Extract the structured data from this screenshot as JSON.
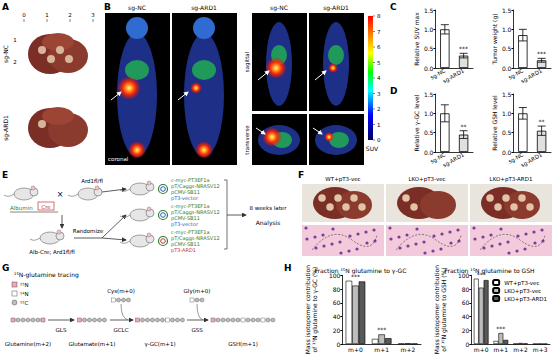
{
  "figure": {
    "panels": [
      "A",
      "B",
      "C",
      "D",
      "E",
      "F",
      "G",
      "H"
    ],
    "A": {
      "groups": [
        "sg-NC",
        "sg-ARD1"
      ],
      "ruler_x": [
        0,
        1,
        2,
        3
      ],
      "ruler_y": [
        1,
        2
      ]
    },
    "B": {
      "groups": [
        "sg-NC",
        "sg-ARD1"
      ],
      "views": [
        "coronal",
        "sagittal",
        "transverse"
      ],
      "colorbar": {
        "label": "SUV",
        "range": [
          0,
          8
        ],
        "ticks": [
          0,
          1,
          2,
          3,
          4,
          5,
          6,
          7,
          8
        ]
      }
    },
    "E": {
      "cross": "×",
      "transgene": [
        "Albumin",
        "Cre"
      ],
      "strains": [
        "Ard1fl/fl",
        "Alb-Cre; Ard1fl/fl"
      ],
      "step": "Randomize",
      "plasmids": [
        "c-myc-PT3EF1a",
        "pT/Caggs-NRASV12",
        "pCMV-SB11"
      ],
      "vectors": [
        "pT3-vector",
        "pT3-vector",
        "pT3-ARD1"
      ],
      "time": "8 weeks later",
      "end": "Analysis"
    },
    "F": {
      "groups": [
        "WT+pT3-vec",
        "LKO+pT3-vec",
        "LKO+pT3-ARD1"
      ]
    },
    "G": {
      "title": "¹⁵N-glutamine tracing",
      "symbols": [
        "¹⁵N",
        "¹⁴N",
        "¹²C"
      ],
      "metabolites": [
        "Glutamine(m+2)",
        "Glutamate(m+1)",
        "γ-GC(m+1)",
        "GSH(m+1)"
      ],
      "enzymes": [
        "GLS",
        "GCLC",
        "GSS"
      ],
      "inputs": [
        "Cys(m+0)",
        "Gly(m+0)"
      ]
    }
  },
  "chart_data": [
    {
      "type": "bar",
      "ylabel": "Relative SUV max",
      "categories": [
        "sg-NC",
        "sg-ARD1"
      ],
      "values": [
        1.0,
        0.32
      ],
      "errors": [
        0.12,
        0.06
      ],
      "colors": [
        "#ffffff",
        "#e0e0e0"
      ],
      "ylim": [
        0,
        1.5
      ],
      "yticks": [
        {
          "value": 0,
          "label": "0.0"
        },
        {
          "value": 0.5,
          "label": "0.5"
        },
        {
          "value": 1,
          "label": "1.0"
        },
        {
          "value": 1.5,
          "label": "1.5"
        }
      ],
      "annotations": [
        {
          "category": "sg-ARD1",
          "text": "***"
        }
      ]
    },
    {
      "type": "bar",
      "ylabel": "Tumor weight (g)",
      "categories": [
        "sg-NC",
        "sg-ARD1"
      ],
      "values": [
        0.85,
        0.2
      ],
      "errors": [
        0.15,
        0.05
      ],
      "colors": [
        "#ffffff",
        "#e0e0e0"
      ],
      "ylim": [
        0,
        1.5
      ],
      "yticks": [
        {
          "value": 0,
          "label": "0.0"
        },
        {
          "value": 0.5,
          "label": "0.5"
        },
        {
          "value": 1,
          "label": "1.0"
        },
        {
          "value": 1.5,
          "label": "1.5"
        }
      ],
      "annotations": [
        {
          "category": "sg-ARD1",
          "text": "***"
        }
      ]
    },
    {
      "type": "bar",
      "ylabel": "Relative γ-GC level",
      "categories": [
        "sg-NC",
        "sg-ARD1"
      ],
      "values": [
        1.0,
        0.45
      ],
      "errors": [
        0.22,
        0.1
      ],
      "colors": [
        "#ffffff",
        "#e0e0e0"
      ],
      "ylim": [
        0,
        1.5
      ],
      "yticks": [
        {
          "value": 0,
          "label": "0.0"
        },
        {
          "value": 0.5,
          "label": "0.5"
        },
        {
          "value": 1,
          "label": "1.0"
        },
        {
          "value": 1.5,
          "label": "1.5"
        }
      ],
      "annotations": [
        {
          "category": "sg-ARD1",
          "text": "**"
        }
      ]
    },
    {
      "type": "bar",
      "ylabel": "Relative GSH level",
      "categories": [
        "sg-NC",
        "sg-ARD1"
      ],
      "values": [
        1.0,
        0.55
      ],
      "errors": [
        0.15,
        0.12
      ],
      "colors": [
        "#ffffff",
        "#e0e0e0"
      ],
      "ylim": [
        0,
        1.5
      ],
      "yticks": [
        {
          "value": 0,
          "label": "0.0"
        },
        {
          "value": 0.5,
          "label": "0.5"
        },
        {
          "value": 1,
          "label": "1.0"
        },
        {
          "value": 1.5,
          "label": "1.5"
        }
      ],
      "annotations": [
        {
          "category": "sg-ARD1",
          "text": "**"
        }
      ]
    },
    {
      "type": "bar",
      "title": "Fraction ¹⁵N glutamine to γ-GC",
      "ylabel": "Mass isotopomer contribution\nof ¹⁵N glutamine to γ-GC (%)",
      "categories": [
        "m+0",
        "m+1",
        "m+2"
      ],
      "series": [
        {
          "name": "WT+pT3-vec",
          "color": "#ffffff",
          "values": [
            92,
            7.5,
            0.5
          ]
        },
        {
          "name": "LKO+pT3-vec",
          "color": "#bdbdbd",
          "values": [
            85,
            14,
            1
          ]
        },
        {
          "name": "LKO+pT3-ARD1",
          "color": "#595959",
          "values": [
            91,
            8.5,
            0.5
          ]
        }
      ],
      "ylim": [
        0,
        100
      ],
      "yticks": [
        0,
        20,
        40,
        60,
        80,
        100
      ],
      "annotations": [
        {
          "category": "m+0",
          "text": "***"
        },
        {
          "category": "m+1",
          "text": "***"
        }
      ]
    },
    {
      "type": "bar",
      "title": "Fraction ¹⁵N glutamine to GSH",
      "ylabel": "Mass isotopomer contribution\nof ¹⁵N glutamine to GSH (%)",
      "categories": [
        "m+0",
        "m+1",
        "m+2",
        "m+3"
      ],
      "series": [
        {
          "name": "WT+pT3-vec",
          "color": "#ffffff",
          "values": [
            95,
            4.5,
            0.4,
            0.1
          ]
        },
        {
          "name": "LKO+pT3-vec",
          "color": "#bdbdbd",
          "values": [
            82,
            16,
            1.5,
            0.3
          ]
        },
        {
          "name": "LKO+pT3-ARD1",
          "color": "#595959",
          "values": [
            93,
            6,
            0.8,
            0.2
          ]
        }
      ],
      "ylim": [
        0,
        100
      ],
      "yticks": [
        0,
        20,
        40,
        60,
        80,
        100
      ],
      "legend": "upper right",
      "annotations": [
        {
          "category": "m+0",
          "text": "***"
        },
        {
          "category": "m+1",
          "text": "***"
        }
      ]
    }
  ]
}
